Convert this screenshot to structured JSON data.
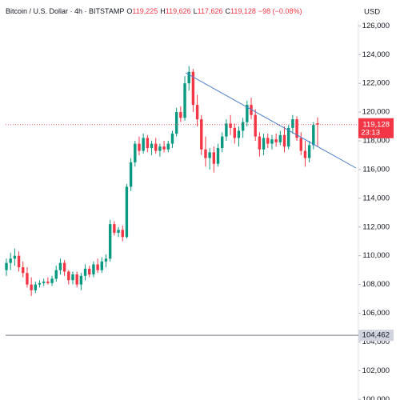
{
  "chart_data": {
    "type": "candlestick",
    "header": {
      "symbol": "Bitcoin / U.S. Dollar · 4h · BITSTAMP",
      "open_label": "O",
      "open": "119,225",
      "high_label": "H",
      "high": "119,626",
      "low_label": "L",
      "low": "117,626",
      "close_label": "C",
      "close": "119,128",
      "change": "−98 (−0.08%)"
    },
    "currency": "USD",
    "up_color": "#089981",
    "down_color": "#f23645",
    "open": [
      109000,
      109500,
      109800,
      110000,
      109200,
      108800,
      108000,
      107600,
      108000,
      108100,
      108200,
      108100,
      108400,
      109000,
      109500,
      108900,
      108300,
      108700,
      108000,
      108600,
      109100,
      108700,
      109400,
      109000,
      109600,
      109800,
      112200,
      111600,
      111800,
      111300,
      114800,
      116500,
      117800,
      117300,
      118200,
      117500,
      117800,
      117300,
      117600,
      117400,
      117800,
      118500,
      120000,
      119600,
      122000,
      122800,
      120500,
      119500,
      117400,
      116800,
      117200,
      116400,
      117500,
      118300,
      119200,
      118900,
      118200,
      118700,
      119300,
      120500,
      119800,
      118300,
      117400,
      118200,
      117800,
      118100,
      117900,
      118400,
      117600,
      118900,
      119500,
      118200,
      117300,
      116800,
      117700,
      119225
    ],
    "high": [
      109800,
      110200,
      110500,
      110300,
      109600,
      109200,
      108500,
      108200,
      108300,
      108400,
      108500,
      108600,
      109300,
      109800,
      109700,
      109000,
      108900,
      108900,
      108800,
      109400,
      109300,
      109600,
      109800,
      109900,
      110100,
      112500,
      112400,
      112000,
      112100,
      115000,
      116800,
      118000,
      118300,
      118500,
      118400,
      118000,
      118200,
      117800,
      118000,
      118000,
      118700,
      120300,
      120400,
      122500,
      123200,
      123000,
      121200,
      119800,
      118300,
      117500,
      117600,
      117800,
      118600,
      119500,
      119800,
      119200,
      119000,
      119600,
      120800,
      121000,
      120200,
      118600,
      118500,
      118500,
      118400,
      118500,
      118700,
      119000,
      119100,
      119800,
      119700,
      118600,
      118000,
      118000,
      119300,
      119626
    ],
    "low": [
      108600,
      109000,
      109300,
      108900,
      108500,
      107800,
      107200,
      107400,
      107800,
      107900,
      108000,
      107900,
      108200,
      108700,
      108600,
      108000,
      108000,
      107800,
      107600,
      108300,
      108500,
      108500,
      108800,
      108800,
      109200,
      109600,
      111400,
      111300,
      111000,
      111200,
      114500,
      116200,
      117000,
      117100,
      117200,
      117000,
      117100,
      116900,
      117200,
      117200,
      117500,
      118300,
      119300,
      119400,
      121500,
      120000,
      119000,
      117000,
      116200,
      116000,
      115800,
      116200,
      117200,
      118000,
      118400,
      117800,
      117600,
      118200,
      119000,
      119500,
      118000,
      116900,
      117000,
      117500,
      117400,
      117600,
      117700,
      117200,
      117400,
      118500,
      118000,
      117000,
      116200,
      116500,
      117400,
      117626
    ],
    "close": [
      109500,
      109800,
      110000,
      109200,
      108800,
      108000,
      107600,
      108000,
      108100,
      108200,
      108100,
      108400,
      109000,
      109500,
      108900,
      108300,
      108700,
      108000,
      108600,
      109100,
      108700,
      109400,
      109000,
      109600,
      109800,
      112200,
      111600,
      111800,
      111300,
      114800,
      116500,
      117800,
      117300,
      118200,
      117500,
      117800,
      117300,
      117600,
      117400,
      117800,
      118500,
      120000,
      119600,
      122000,
      122800,
      120500,
      119500,
      117400,
      116800,
      117200,
      116400,
      117500,
      118300,
      119200,
      118900,
      118200,
      118700,
      119300,
      120500,
      119800,
      118300,
      117400,
      118200,
      117800,
      118100,
      117900,
      118400,
      117600,
      118900,
      119500,
      118200,
      117300,
      116800,
      117700,
      119100,
      119128
    ],
    "ylim": [
      100000,
      127800
    ],
    "yticks": [
      {
        "value": 100000,
        "label": "100,000"
      },
      {
        "value": 102000,
        "label": "102,000"
      },
      {
        "value": 104000,
        "label": "104,000"
      },
      {
        "value": 106000,
        "label": "106,000"
      },
      {
        "value": 108000,
        "label": "108,000"
      },
      {
        "value": 110000,
        "label": "110,000"
      },
      {
        "value": 112000,
        "label": "112,000"
      },
      {
        "value": 114000,
        "label": "114,000"
      },
      {
        "value": 116000,
        "label": "116,000"
      },
      {
        "value": 118000,
        "label": "118,000"
      },
      {
        "value": 120000,
        "label": "120,000"
      },
      {
        "value": 122000,
        "label": "122,000"
      },
      {
        "value": 124000,
        "label": "124,000"
      },
      {
        "value": 126000,
        "label": "126,000"
      }
    ],
    "last_price": {
      "value": 119128,
      "label": "119,128"
    },
    "countdown": "23:13",
    "level": {
      "value": 104462,
      "label": "104,462"
    }
  }
}
